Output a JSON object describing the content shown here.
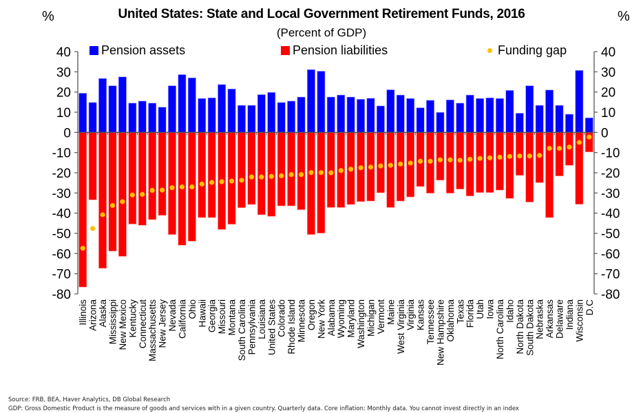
{
  "chart_data": {
    "type": "bar",
    "title": "United States: State and Local Government Retirement Funds, 2016",
    "subtitle": "(Percent of GDP)",
    "ylabel_left": "%",
    "ylabel_right": "%",
    "xlabel": "",
    "ylim": [
      -80,
      40
    ],
    "yticks": [
      40,
      30,
      20,
      10,
      0,
      -10,
      -20,
      -30,
      -40,
      -50,
      -60,
      -70,
      -80
    ],
    "grid": false,
    "legend_placement": "top",
    "colors": {
      "assets": "#0000ff",
      "liabilities": "#ff0000",
      "gap": "#ffc000",
      "axis": "#555555"
    },
    "legend": [
      {
        "name": "Pension assets",
        "marker": "square",
        "color": "#0000ff"
      },
      {
        "name": "Pension liabilities",
        "marker": "square",
        "color": "#ff0000"
      },
      {
        "name": "Funding gap",
        "marker": "dot",
        "color": "#ffc000"
      }
    ],
    "categories": [
      "Illinois",
      "Arizona",
      "Alaska",
      "Mississippi",
      "New Mexico",
      "Kentucky",
      "Connecticut",
      "Massachusetts",
      "New Jersey",
      "Nevada",
      "California",
      "Ohio",
      "Hawaii",
      "Georgia",
      "Missouri",
      "Montana",
      "South Carolina",
      "Pennsylvania",
      "Louisiana",
      "United States",
      "Colorado",
      "Rhode Island",
      "Minnesota",
      "Oregon",
      "New York",
      "Alabama",
      "Wyoming",
      "Maryland",
      "Washington",
      "Michigan",
      "Vermont",
      "Maine",
      "West Virginia",
      "Virginia",
      "Kansas",
      "Tennessee",
      "New Hampshire",
      "Oklahoma",
      "Texas",
      "Florida",
      "Utah",
      "Iowa",
      "North Carolina",
      "Idaho",
      "North Dakota",
      "South Dakota",
      "Nebraska",
      "Arkansas",
      "Delaware",
      "Indiana",
      "Wisconsin",
      "D.C"
    ],
    "series": [
      {
        "name": "Pension assets",
        "type": "bar",
        "values": [
          19.4,
          14.8,
          26.7,
          23.1,
          27.5,
          14.5,
          15.5,
          14.5,
          12.5,
          23.1,
          28.6,
          27.0,
          16.8,
          17.1,
          23.7,
          21.5,
          13.4,
          13.4,
          18.7,
          19.8,
          14.8,
          15.5,
          17.5,
          31.1,
          30.3,
          17.5,
          18.5,
          17.5,
          16.4,
          16.9,
          13.1,
          21.1,
          18.5,
          16.8,
          12.2,
          15.9,
          9.9,
          16.1,
          14.5,
          18.5,
          16.8,
          17.1,
          16.8,
          20.8,
          9.5,
          23.1,
          13.4,
          21.0,
          13.4,
          9.0,
          30.7,
          7.2
        ]
      },
      {
        "name": "Pension liabilities",
        "type": "bar",
        "values": [
          -76.6,
          -33.4,
          -67.3,
          -58.8,
          -61.4,
          -45.4,
          -46.0,
          -43.2,
          -41.1,
          -50.6,
          -55.9,
          -53.9,
          -42.2,
          -42.2,
          -48.1,
          -45.5,
          -37.3,
          -35.7,
          -40.8,
          -41.6,
          -36.4,
          -36.4,
          -38.3,
          -50.6,
          -49.9,
          -37.2,
          -37.2,
          -35.7,
          -34.3,
          -34.0,
          -29.9,
          -37.2,
          -34.0,
          -32.0,
          -26.8,
          -30.1,
          -23.7,
          -30.1,
          -28.1,
          -31.5,
          -29.8,
          -29.8,
          -28.6,
          -32.7,
          -21.3,
          -34.5,
          -24.9,
          -42.2,
          -21.6,
          -16.3,
          -35.6,
          -9.7
        ]
      },
      {
        "name": "Funding gap",
        "type": "scatter",
        "values": [
          -57.4,
          -47.6,
          -40.8,
          -36.2,
          -34.3,
          -31.0,
          -30.7,
          -28.7,
          -28.6,
          -27.4,
          -27.0,
          -27.0,
          -25.6,
          -24.8,
          -24.4,
          -24.1,
          -23.7,
          -22.1,
          -22.1,
          -21.8,
          -21.5,
          -20.9,
          -20.9,
          -19.9,
          -19.9,
          -20.0,
          -18.9,
          -18.2,
          -17.5,
          -17.2,
          -16.6,
          -16.3,
          -15.7,
          -15.2,
          -14.3,
          -14.3,
          -13.6,
          -13.6,
          -13.8,
          -13.3,
          -12.9,
          -12.6,
          -12.3,
          -11.9,
          -11.7,
          -11.7,
          -11.4,
          -7.9,
          -7.9,
          -7.3,
          -5.0,
          -2.3
        ]
      }
    ]
  },
  "footer": {
    "source": "Source: FRB, BEA, Haver Analytics, DB Global Research",
    "note": "GDP: Gross Domestic Product is the measure of goods and services with in a given country. Quarterly data. Core inflation: Monthly data. You cannot invest directly in an index"
  }
}
